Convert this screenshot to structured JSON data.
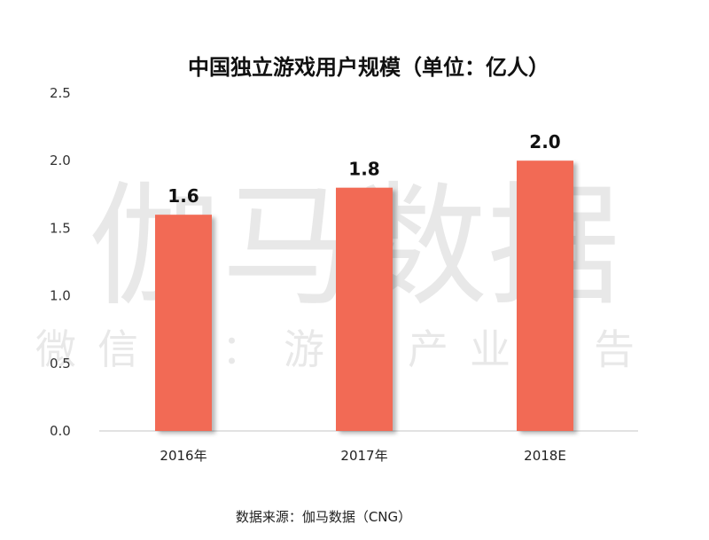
{
  "chart_data": {
    "type": "bar",
    "title": "中国独立游戏用户规模（单位：亿人）",
    "categories": [
      "2016年",
      "2017年",
      "2018E"
    ],
    "values": [
      1.6,
      1.8,
      2.0
    ],
    "data_labels": [
      "1.6",
      "1.8",
      "2.0"
    ],
    "ylim": [
      0,
      2.5
    ],
    "y_ticks": [
      "0.0",
      "0.5",
      "1.0",
      "1.5",
      "2.0",
      "2.5"
    ],
    "xlabel": "",
    "ylabel": "",
    "grid": false,
    "legend": "none",
    "bar_color": "#F26A55",
    "source": "数据来源：伽马数据（CNG）"
  },
  "watermark": {
    "main": "伽马数据",
    "sub": "微信号：游戏产业报告"
  }
}
